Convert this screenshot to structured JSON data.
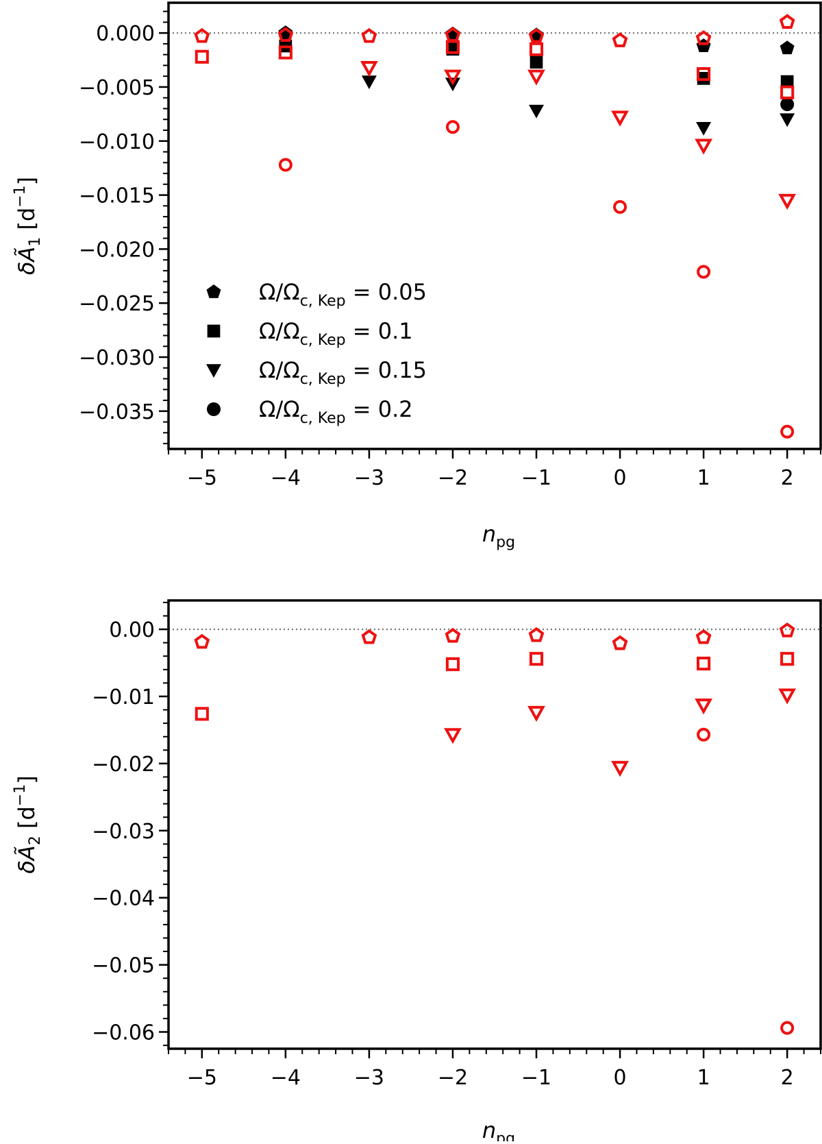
{
  "chart_data": [
    {
      "type": "scatter",
      "panel": "top",
      "xlabel": "n_pg",
      "ylabel": "δÃ1 [d^-1]",
      "xlim": [
        -5.4,
        2.4
      ],
      "ylim": [
        -0.0385,
        0.0028
      ],
      "xticks": [
        -5,
        -4,
        -3,
        -2,
        -1,
        0,
        1,
        2
      ],
      "xtick_labels": [
        "−5",
        "−4",
        "−3",
        "−2",
        "−1",
        "0",
        "1",
        "2"
      ],
      "yticks": [
        0.0,
        -0.005,
        -0.01,
        -0.015,
        -0.02,
        -0.025,
        -0.03,
        -0.035
      ],
      "ytick_labels": [
        "0.000",
        "−0.005",
        "−0.010",
        "−0.015",
        "−0.020",
        "−0.025",
        "−0.030",
        "−0.035"
      ],
      "reference_line": 0,
      "legend": {
        "placement": "lower-left",
        "entries": [
          {
            "symbol": "pentagon",
            "label": "Ω/Ω",
            "sub": "c, Kep",
            "value": "= 0.05"
          },
          {
            "symbol": "square",
            "label": "Ω/Ω",
            "sub": "c, Kep",
            "value": "= 0.1"
          },
          {
            "symbol": "triangle",
            "label": "Ω/Ω",
            "sub": "c, Kep",
            "value": "= 0.15"
          },
          {
            "symbol": "circle",
            "label": "Ω/Ω",
            "sub": "c, Kep",
            "value": "= 0.2"
          }
        ]
      },
      "series": [
        {
          "name": "Ω/Ωc,Kep = 0.05",
          "marker": "pentagon",
          "style": "black-filled",
          "points": [
            [
              -4,
              0.0
            ],
            [
              -2,
              -0.0001
            ],
            [
              -1,
              -0.0002
            ],
            [
              1,
              -0.0012
            ],
            [
              2,
              -0.0014
            ]
          ]
        },
        {
          "name": "Ω/Ωc,Kep = 0.1",
          "marker": "square",
          "style": "black-filled",
          "points": [
            [
              -4,
              -0.0012
            ],
            [
              -2,
              -0.0015
            ],
            [
              -1,
              -0.0027
            ],
            [
              1,
              -0.0042
            ],
            [
              2,
              -0.0045
            ]
          ]
        },
        {
          "name": "Ω/Ωc,Kep = 0.15",
          "marker": "triangle",
          "style": "black-filled",
          "points": [
            [
              -3,
              -0.0045
            ],
            [
              -2,
              -0.0047
            ],
            [
              -1,
              -0.0072
            ],
            [
              1,
              -0.0088
            ],
            [
              2,
              -0.008
            ]
          ]
        },
        {
          "name": "Ω/Ωc,Kep = 0.2",
          "marker": "circle",
          "style": "black-filled",
          "points": [
            [
              2,
              -0.0066
            ]
          ]
        },
        {
          "name": "Ω/Ωc,Kep = 0.05",
          "marker": "pentagon",
          "style": "red-open",
          "points": [
            [
              -5,
              -0.0003
            ],
            [
              -4,
              -0.0002
            ],
            [
              -3,
              -0.0003
            ],
            [
              -2,
              -0.0002
            ],
            [
              -1,
              -0.0003
            ],
            [
              0,
              -0.0007
            ],
            [
              1,
              -0.0005
            ],
            [
              2,
              0.001
            ]
          ]
        },
        {
          "name": "Ω/Ωc,Kep = 0.1",
          "marker": "square",
          "style": "red-open",
          "points": [
            [
              -5,
              -0.0022
            ],
            [
              -4,
              -0.0018
            ],
            [
              -2,
              -0.0013
            ],
            [
              -1,
              -0.0015
            ],
            [
              1,
              -0.0038
            ],
            [
              2,
              -0.0055
            ]
          ]
        },
        {
          "name": "Ω/Ωc,Kep = 0.15",
          "marker": "triangle",
          "style": "red-open",
          "points": [
            [
              -3,
              -0.0032
            ],
            [
              -2,
              -0.004
            ],
            [
              -1,
              -0.004
            ],
            [
              0,
              -0.0078
            ],
            [
              1,
              -0.0104
            ],
            [
              2,
              -0.0155
            ]
          ]
        },
        {
          "name": "Ω/Ωc,Kep = 0.2",
          "marker": "circle",
          "style": "red-open",
          "points": [
            [
              -4,
              -0.0122
            ],
            [
              -2,
              -0.0087
            ],
            [
              0,
              -0.0161
            ],
            [
              1,
              -0.0221
            ],
            [
              2,
              -0.0369
            ]
          ]
        }
      ]
    },
    {
      "type": "scatter",
      "panel": "bottom",
      "xlabel": "n_pg",
      "ylabel": "δÃ2 [d^-1]",
      "xlim": [
        -5.4,
        2.4
      ],
      "ylim": [
        -0.0625,
        0.0043
      ],
      "xticks": [
        -5,
        -4,
        -3,
        -2,
        -1,
        0,
        1,
        2
      ],
      "xtick_labels": [
        "−5",
        "−4",
        "−3",
        "−2",
        "−1",
        "0",
        "1",
        "2"
      ],
      "yticks": [
        0.0,
        -0.01,
        -0.02,
        -0.03,
        -0.04,
        -0.05,
        -0.06
      ],
      "ytick_labels": [
        "0.00",
        "−0.01",
        "−0.02",
        "−0.03",
        "−0.04",
        "−0.05",
        "−0.06"
      ],
      "reference_line": 0,
      "series": [
        {
          "name": "Ω/Ωc,Kep = 0.05",
          "marker": "pentagon",
          "style": "red-open",
          "points": [
            [
              -5,
              -0.0019
            ],
            [
              -3,
              -0.0012
            ],
            [
              -2,
              -0.001
            ],
            [
              -1,
              -0.0009
            ],
            [
              0,
              -0.0021
            ],
            [
              1,
              -0.0012
            ],
            [
              2,
              -0.0002
            ]
          ]
        },
        {
          "name": "Ω/Ωc,Kep = 0.1",
          "marker": "square",
          "style": "red-open",
          "points": [
            [
              -5,
              -0.0126
            ],
            [
              -2,
              -0.0052
            ],
            [
              -1,
              -0.0044
            ],
            [
              1,
              -0.0051
            ],
            [
              2,
              -0.0044
            ]
          ]
        },
        {
          "name": "Ω/Ωc,Kep = 0.15",
          "marker": "triangle",
          "style": "red-open",
          "points": [
            [
              -2,
              -0.0157
            ],
            [
              -1,
              -0.0124
            ],
            [
              0,
              -0.0206
            ],
            [
              1,
              -0.0113
            ],
            [
              2,
              -0.0098
            ]
          ]
        },
        {
          "name": "Ω/Ωc,Kep = 0.2",
          "marker": "circle",
          "style": "red-open",
          "points": [
            [
              1,
              -0.0157
            ],
            [
              2,
              -0.0594
            ]
          ]
        }
      ]
    }
  ]
}
